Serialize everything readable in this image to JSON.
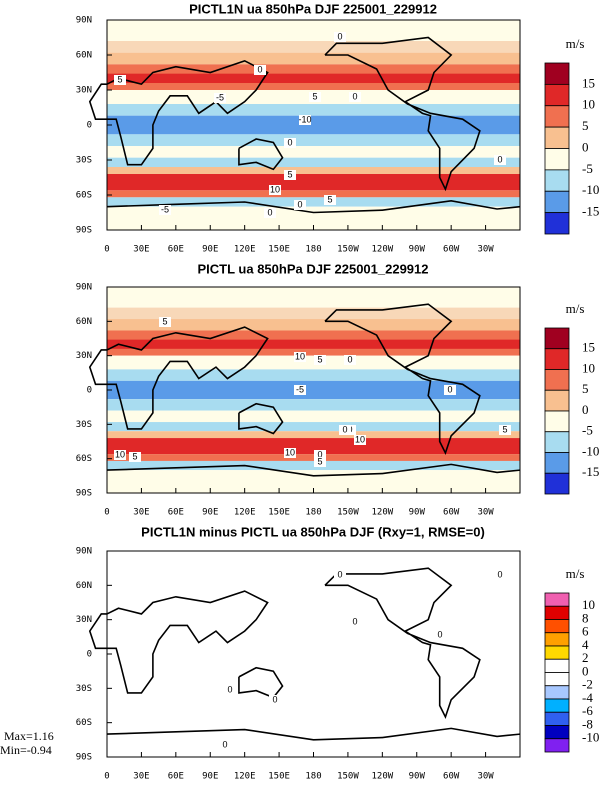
{
  "panels": [
    {
      "title": "PICTL1N ua 850hPa DJF 225001_229912",
      "lat_labels": [
        "90N",
        "60N",
        "30N",
        "0",
        "30S",
        "60S",
        "90S"
      ],
      "lon_labels": [
        "0",
        "30E",
        "60E",
        "90E",
        "120E",
        "150E",
        "180",
        "150W",
        "120W",
        "90W",
        "60W",
        "30W"
      ],
      "unit": "m/s",
      "colorbar": {
        "labels": [
          "15",
          "10",
          "5",
          "0",
          "-5",
          "-10",
          "-15"
        ],
        "colors": [
          "#a00020",
          "#e02828",
          "#f07050",
          "#f8c090",
          "#fffde8",
          "#a8dcf0",
          "#5a9be8",
          "#2030d8"
        ]
      },
      "contour_labels": [
        "0",
        "5",
        "0",
        "-5",
        "-10",
        "5",
        "0",
        "0",
        "5",
        "10",
        "0",
        "-5",
        "5",
        "0",
        "0"
      ]
    },
    {
      "title": "PICTL ua 850hPa DJF 225001_229912",
      "lat_labels": [
        "90N",
        "60N",
        "30N",
        "0",
        "30S",
        "60S",
        "90S"
      ],
      "lon_labels": [
        "0",
        "30E",
        "60E",
        "90E",
        "120E",
        "150E",
        "180",
        "150W",
        "120W",
        "90W",
        "60W",
        "30W"
      ],
      "unit": "m/s",
      "colorbar": {
        "labels": [
          "15",
          "10",
          "5",
          "0",
          "-5",
          "-10",
          "-15"
        ],
        "colors": [
          "#a00020",
          "#e02828",
          "#f07050",
          "#f8c090",
          "#fffde8",
          "#a8dcf0",
          "#5a9be8",
          "#2030d8"
        ]
      },
      "contour_labels": [
        "5",
        "10",
        "5",
        "0",
        "0",
        "-5",
        "0",
        "5",
        "0",
        "10",
        "5",
        "10",
        "0",
        "10",
        "5"
      ]
    },
    {
      "title": "PICTL1N minus PICTL ua 850hPa DJF (Rxy=1, RMSE=0)",
      "lat_labels": [
        "90N",
        "60N",
        "30N",
        "0",
        "30S",
        "60S",
        "90S"
      ],
      "lon_labels": [
        "0",
        "30E",
        "60E",
        "90E",
        "120E",
        "150E",
        "180",
        "150W",
        "120W",
        "90W",
        "60W",
        "30W"
      ],
      "unit": "m/s",
      "colorbar": {
        "labels": [
          "10",
          "8",
          "6",
          "4",
          "2",
          "0",
          "-2",
          "-4",
          "-6",
          "-8",
          "-10"
        ],
        "colors": [
          "#f060b0",
          "#e00000",
          "#ff5000",
          "#ffa000",
          "#ffd800",
          "#ffffff",
          "#ffffff",
          "#a8c8ff",
          "#00b0ff",
          "#3060f0",
          "#0000c0",
          "#8020f0"
        ]
      },
      "contour_labels": [
        "0",
        "0",
        "0",
        "0",
        "0",
        "0",
        "0"
      ]
    }
  ],
  "stats": [
    "Max=1.16",
    "Min=-0.94"
  ]
}
